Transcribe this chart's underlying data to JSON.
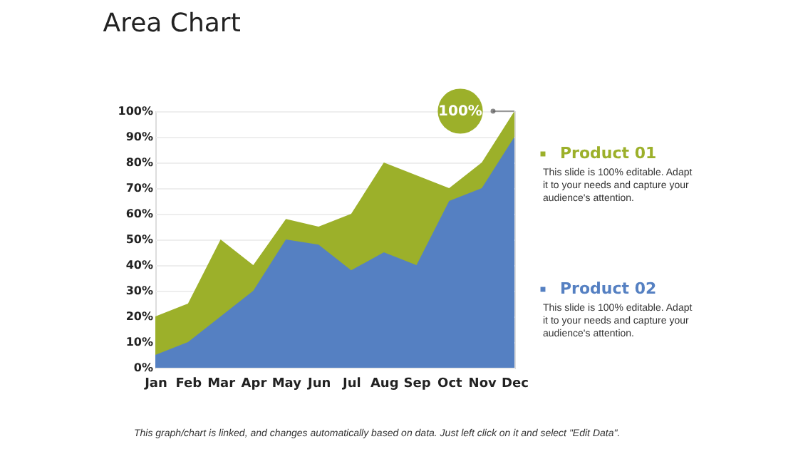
{
  "chart_data": {
    "type": "area",
    "title": "Area Chart",
    "categories": [
      "Jan",
      "Feb",
      "Mar",
      "Apr",
      "May",
      "Jun",
      "Jul",
      "Aug",
      "Sep",
      "Oct",
      "Nov",
      "Dec"
    ],
    "series": [
      {
        "name": "Product 01",
        "color": "#9cb02a",
        "values": [
          20,
          25,
          50,
          40,
          58,
          55,
          60,
          80,
          75,
          70,
          80,
          100
        ]
      },
      {
        "name": "Product 02",
        "color": "#5580c2",
        "values": [
          5,
          10,
          20,
          30,
          50,
          48,
          38,
          45,
          40,
          65,
          70,
          90
        ]
      }
    ],
    "ylim": [
      0,
      100
    ],
    "yticks": [
      {
        "value": 0,
        "label": "0%"
      },
      {
        "value": 10,
        "label": "10%"
      },
      {
        "value": 20,
        "label": "20%"
      },
      {
        "value": 30,
        "label": "30%"
      },
      {
        "value": 40,
        "label": "40%"
      },
      {
        "value": 50,
        "label": "50%"
      },
      {
        "value": 60,
        "label": "60%"
      },
      {
        "value": 70,
        "label": "70%"
      },
      {
        "value": 80,
        "label": "80%"
      },
      {
        "value": 90,
        "label": "90%"
      },
      {
        "value": 100,
        "label": "100%"
      }
    ],
    "grid": "y",
    "legend": "right",
    "annotations": [
      "This slide is 100% editable. Adapt it to your needs and capture your audience's attention.",
      "This slide is 100% editable. Adapt it to your needs and capture your audience's attention.",
      {
        "text": "100%",
        "x": "Dec",
        "y": 100
      },
      "This graph/chart is linked, and changes automatically based on data. Just left click on it and select \"Edit Data\"."
    ]
  }
}
